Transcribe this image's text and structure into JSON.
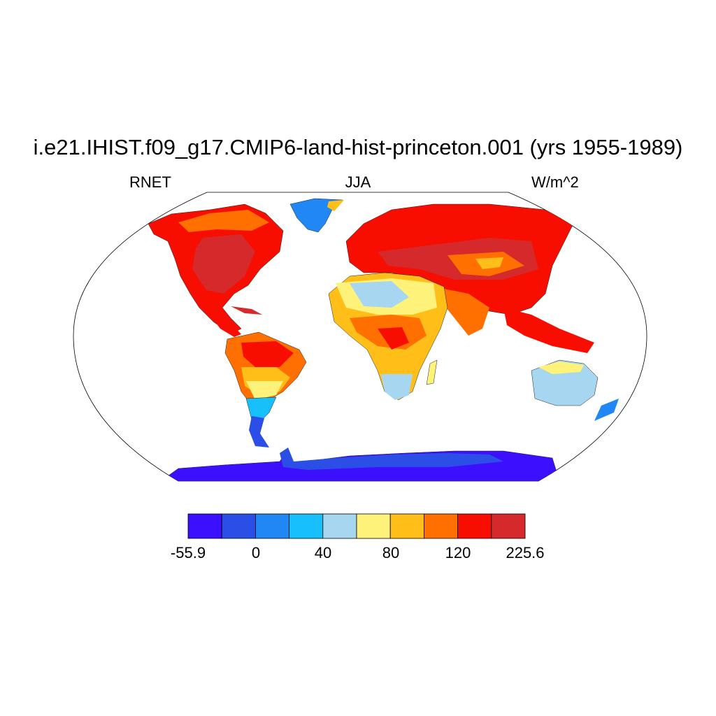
{
  "title": "i.e21.IHIST.f09_g17.CMIP6-land-hist-princeton.001 (yrs 1955-1989)",
  "left_label": "RNET",
  "center_label": "JJA",
  "right_label": "W/m^2",
  "map": {
    "projection": "Robinson",
    "variable": "RNET",
    "season": "JJA",
    "units": "W/m^2",
    "colorbar": {
      "colors": [
        "#3d0fff",
        "#2b4fe6",
        "#2187f5",
        "#18c0fb",
        "#a7d6f0",
        "#fff27a",
        "#ffbf18",
        "#ff7000",
        "#f70e00",
        "#d5292b"
      ],
      "tick_labels": [
        "-55.9",
        "0",
        "40",
        "80",
        "120",
        "225.6"
      ]
    }
  }
}
